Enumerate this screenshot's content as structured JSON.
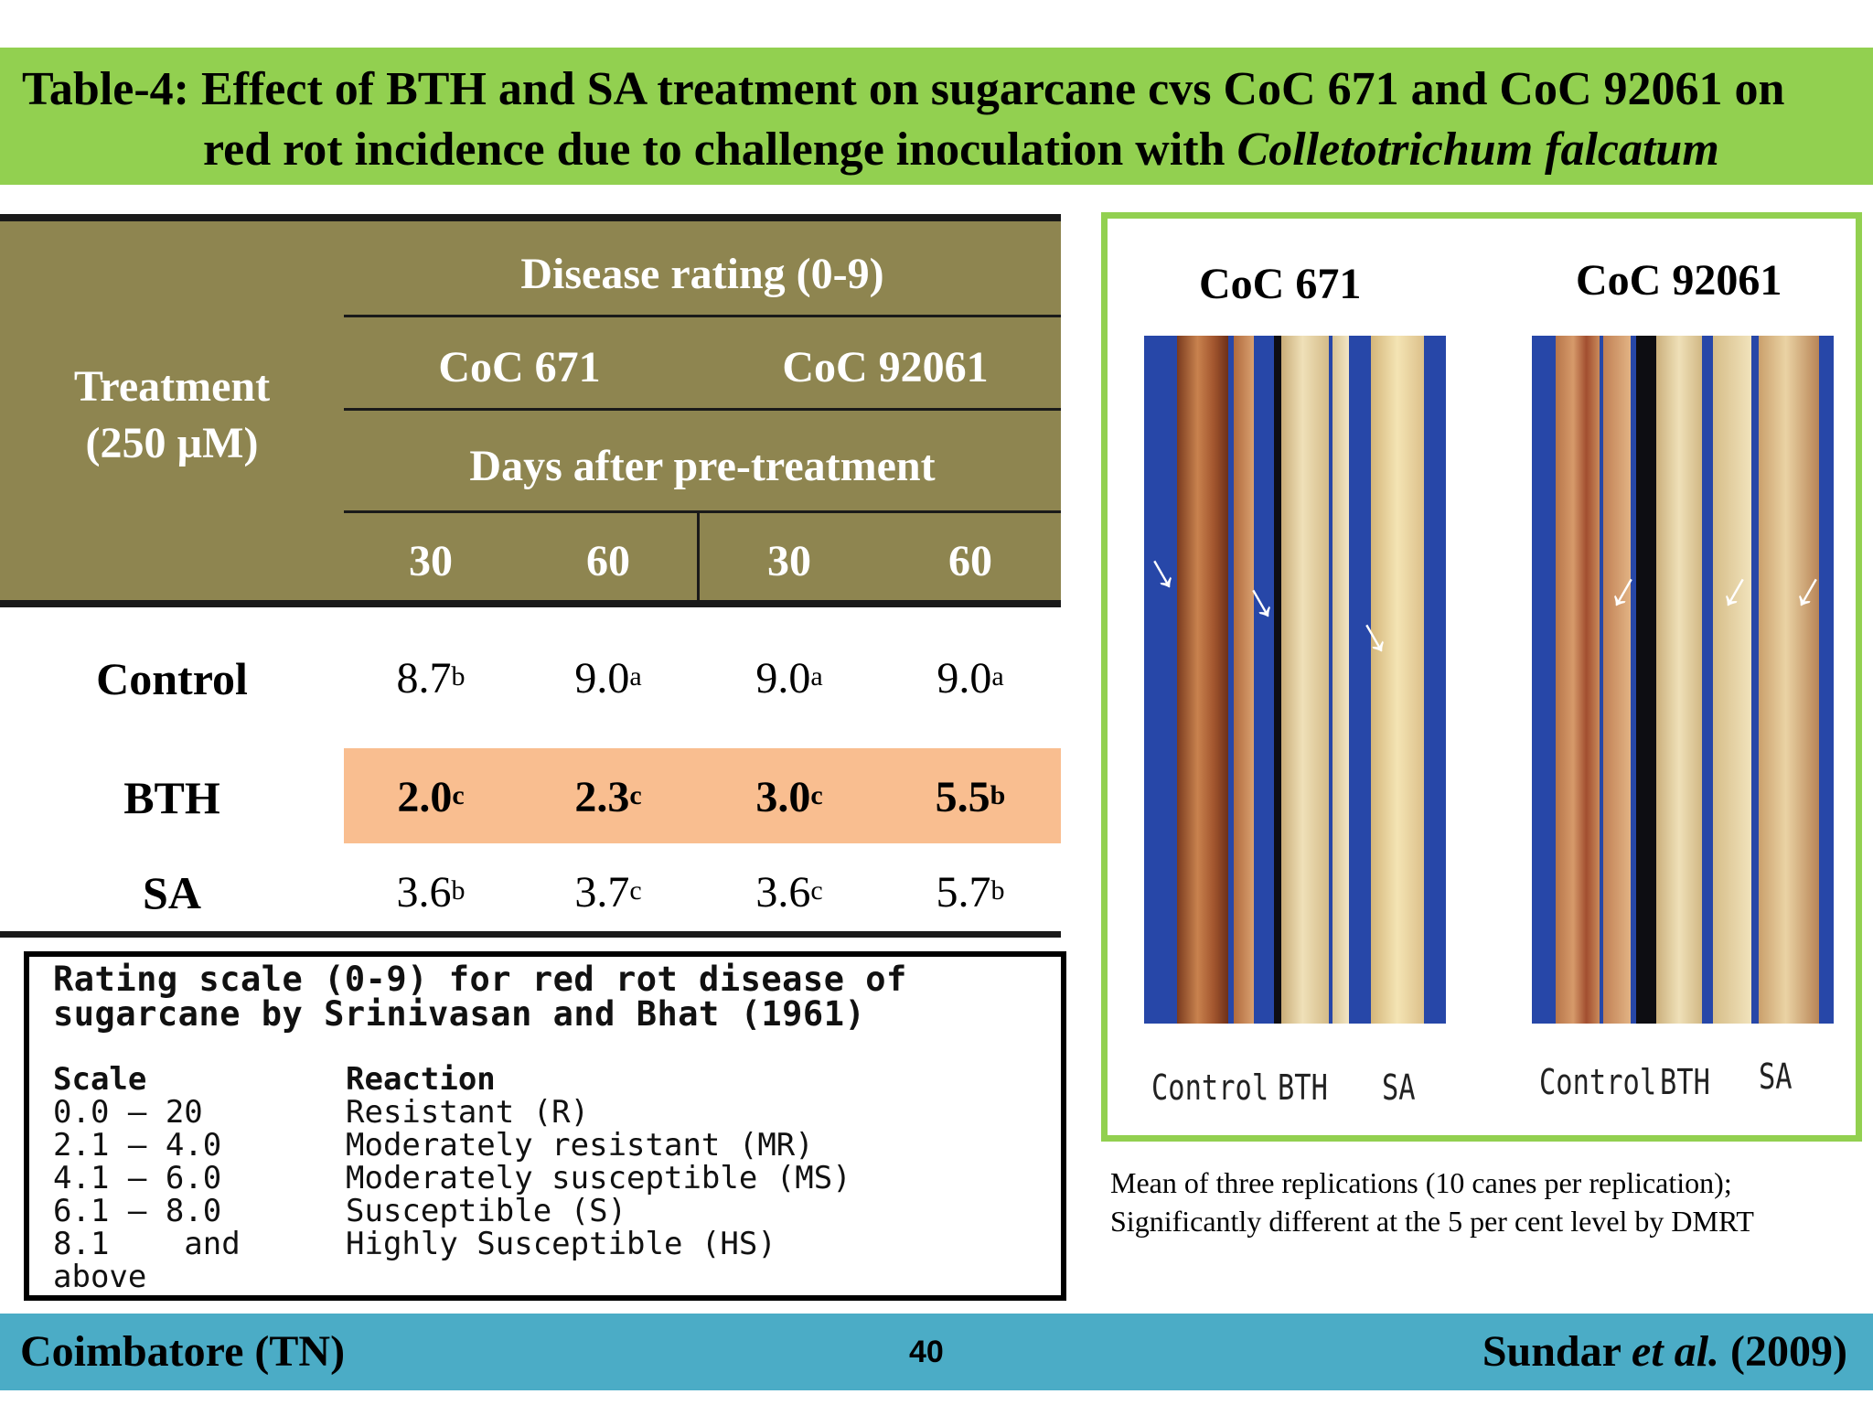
{
  "title": {
    "line1": "Table-4: Effect of BTH and SA treatment on sugarcane cvs CoC 671 and CoC 92061 on",
    "line2_prefix": "red rot incidence due to challenge inoculation with ",
    "line2_italic": "Colletotrichum falcatum"
  },
  "table": {
    "treatment_header_line1": "Treatment",
    "treatment_header_line2": "(250 µM)",
    "disease_rating_header": "Disease rating (0-9)",
    "cultivars": [
      "CoC 671",
      "CoC 92061"
    ],
    "days_header": "Days  after pre-treatment",
    "day_columns": [
      "30",
      "60",
      "30",
      "60"
    ],
    "rows": [
      {
        "label": "Control",
        "values": [
          {
            "v": "8.7",
            "sup": "b"
          },
          {
            "v": "9.0",
            "sup": "a"
          },
          {
            "v": "9.0",
            "sup": "a"
          },
          {
            "v": "9.0",
            "sup": "a"
          }
        ]
      },
      {
        "label": "BTH",
        "values": [
          {
            "v": "2.0",
            "sup": "c"
          },
          {
            "v": "2.3",
            "sup": "c"
          },
          {
            "v": "3.0",
            "sup": "c"
          },
          {
            "v": "5.5",
            "sup": "b"
          }
        ]
      },
      {
        "label": "SA",
        "values": [
          {
            "v": "3.6",
            "sup": "b"
          },
          {
            "v": "3.7",
            "sup": "c"
          },
          {
            "v": "3.6",
            "sup": "c"
          },
          {
            "v": "5.7",
            "sup": "b"
          }
        ]
      }
    ]
  },
  "rating_scale": {
    "title_line1": "Rating scale (0-9) for red rot disease of",
    "title_line2": "sugarcane by Srinivasan and Bhat (1961)",
    "scale_header": "Scale",
    "reaction_header": "Reaction",
    "rows": [
      {
        "scale": "0.0 — 20",
        "reaction": "Resistant (R)"
      },
      {
        "scale": "2.1 — 4.0",
        "reaction": "Moderately resistant (MR)"
      },
      {
        "scale": "4.1 — 6.0",
        "reaction": "Moderately susceptible (MS)"
      },
      {
        "scale": "6.1 — 8.0",
        "reaction": "Susceptible (S)"
      },
      {
        "scale": "8.1    and",
        "reaction": "Highly Susceptible (HS)"
      }
    ],
    "scale_tail": "above"
  },
  "photos": {
    "cultivar_1": "CoC 671",
    "cultivar_2": "CoC 92061",
    "labels_1": [
      "Control",
      "BTH",
      "SA"
    ],
    "labels_2": [
      "Control",
      "BTH",
      "SA"
    ]
  },
  "caption": {
    "line1": "Mean of three replications (10 canes per replication);",
    "line2": "Significantly different at the 5 per cent level by DMRT"
  },
  "footer": {
    "location": "Coimbatore (TN)",
    "page_number": "40",
    "citation_author": "Sundar ",
    "citation_etal": "et al.",
    "citation_year": " (2009)"
  },
  "colors": {
    "title_band": "#92d050",
    "table_header": "#8e8550",
    "bth_highlight": "#f9be90",
    "footer_band": "#4bacc6"
  }
}
